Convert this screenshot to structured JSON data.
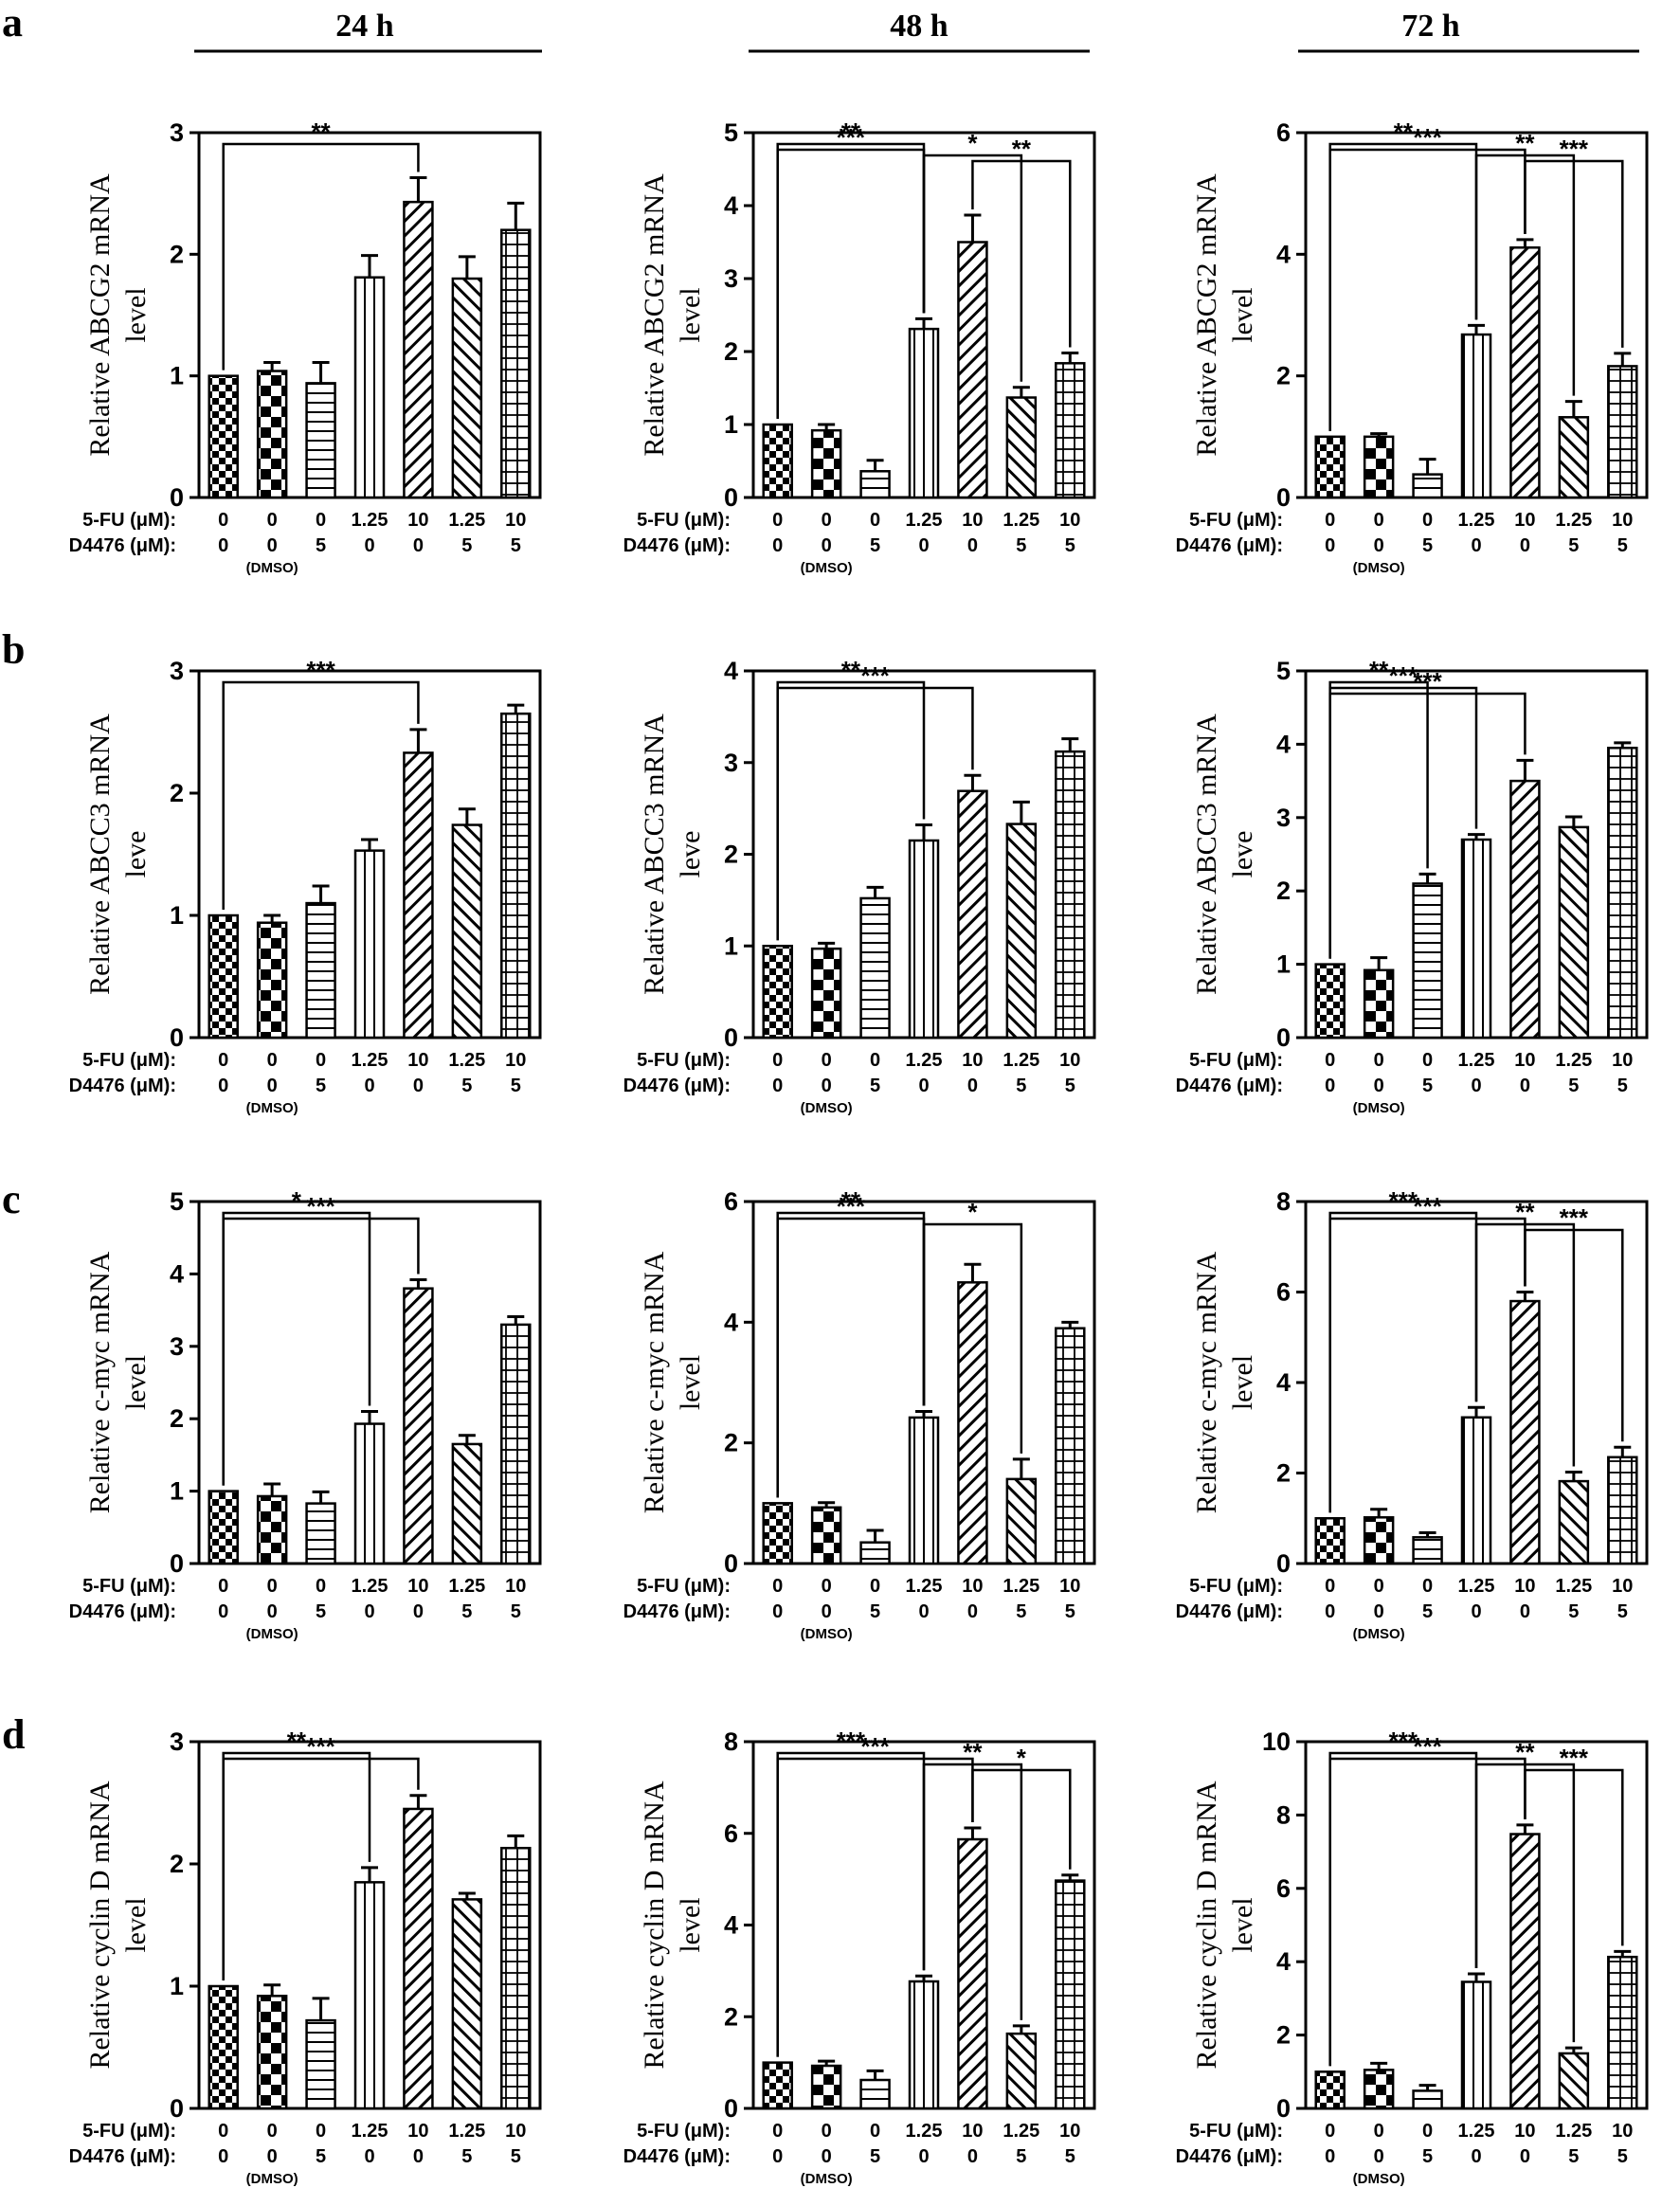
{
  "headers": [
    "24 h",
    "48 h",
    "72 h"
  ],
  "row_axis_labels": {
    "fu": "5-FU (μM):",
    "d": "D4476 (μM):",
    "dmso": "(DMSO)"
  },
  "conditions": {
    "fu": [
      "0",
      "0",
      "0",
      "1.25",
      "10",
      "1.25",
      "10"
    ],
    "d": [
      "0",
      "0",
      "5",
      "0",
      "0",
      "5",
      "5"
    ]
  },
  "patterns": [
    "checker-small",
    "checker-large",
    "horizontal-lines",
    "vertical-lines",
    "diagonal-right",
    "diagonal-left",
    "grid"
  ],
  "chart_data": [
    {
      "type": "bar",
      "panel": "a",
      "timepoint": "24 h",
      "ylabel": [
        "Relative ABCG2 mRNA",
        "level"
      ],
      "ylim": [
        0,
        3
      ],
      "yticks": [
        "0",
        "1",
        "2",
        "3"
      ],
      "values": [
        1.0,
        1.04,
        0.94,
        1.81,
        2.43,
        1.8,
        2.2
      ],
      "errors": [
        0.0,
        0.07,
        0.17,
        0.18,
        0.2,
        0.18,
        0.22
      ],
      "sig": [
        {
          "from": 0,
          "to": 4,
          "label": "**"
        }
      ]
    },
    {
      "type": "bar",
      "panel": "a",
      "timepoint": "48 h",
      "ylabel": [
        "Relative ABCG2 mRNA",
        "level"
      ],
      "ylim": [
        0,
        5
      ],
      "yticks": [
        "0",
        "1",
        "2",
        "3",
        "4",
        "5"
      ],
      "values": [
        1.0,
        0.92,
        0.36,
        2.31,
        3.5,
        1.37,
        1.84
      ],
      "errors": [
        0.0,
        0.08,
        0.15,
        0.14,
        0.37,
        0.14,
        0.14
      ],
      "sig": [
        {
          "from": 0,
          "to": 3,
          "label": "**"
        },
        {
          "from": 0,
          "to": 3,
          "label": "***"
        },
        {
          "from": 3,
          "to": 5,
          "label": "*"
        },
        {
          "from": 4,
          "to": 6,
          "label": "**"
        }
      ]
    },
    {
      "type": "bar",
      "panel": "a",
      "timepoint": "72 h",
      "ylabel": [
        "Relative ABCG2 mRNA",
        "level"
      ],
      "ylim": [
        0,
        6
      ],
      "yticks": [
        "0",
        "2",
        "4",
        "6"
      ],
      "values": [
        1.0,
        1.0,
        0.38,
        2.68,
        4.11,
        1.32,
        2.16
      ],
      "errors": [
        0.0,
        0.05,
        0.25,
        0.15,
        0.13,
        0.26,
        0.21
      ],
      "sig": [
        {
          "from": 0,
          "to": 3,
          "label": "**"
        },
        {
          "from": 0,
          "to": 4,
          "label": "***"
        },
        {
          "from": 3,
          "to": 5,
          "label": "**"
        },
        {
          "from": 4,
          "to": 6,
          "label": "***"
        }
      ]
    },
    {
      "type": "bar",
      "panel": "b",
      "timepoint": "24 h",
      "ylabel": [
        "Relative ABCC3 mRNA",
        "leve"
      ],
      "ylim": [
        0,
        3
      ],
      "yticks": [
        "0",
        "1",
        "2",
        "3"
      ],
      "values": [
        1.0,
        0.94,
        1.1,
        1.53,
        2.33,
        1.74,
        2.65
      ],
      "errors": [
        0.0,
        0.06,
        0.14,
        0.09,
        0.19,
        0.13,
        0.07
      ],
      "sig": [
        {
          "from": 0,
          "to": 4,
          "label": "***"
        }
      ]
    },
    {
      "type": "bar",
      "panel": "b",
      "timepoint": "48 h",
      "ylabel": [
        "Relative ABCC3 mRNA",
        "leve"
      ],
      "ylim": [
        0,
        4
      ],
      "yticks": [
        "0",
        "1",
        "2",
        "3",
        "4"
      ],
      "values": [
        1.0,
        0.97,
        1.52,
        2.15,
        2.69,
        2.33,
        3.12
      ],
      "errors": [
        0.0,
        0.06,
        0.12,
        0.17,
        0.17,
        0.24,
        0.14
      ],
      "sig": [
        {
          "from": 0,
          "to": 3,
          "label": "**"
        },
        {
          "from": 0,
          "to": 4,
          "label": "***"
        }
      ]
    },
    {
      "type": "bar",
      "panel": "b",
      "timepoint": "72 h",
      "ylabel": [
        "Relative ABCC3 mRNA",
        "leve"
      ],
      "ylim": [
        0,
        5
      ],
      "yticks": [
        "0",
        "1",
        "2",
        "3",
        "4",
        "5"
      ],
      "values": [
        1.0,
        0.92,
        2.1,
        2.7,
        3.5,
        2.87,
        3.95
      ],
      "errors": [
        0.0,
        0.17,
        0.13,
        0.07,
        0.28,
        0.14,
        0.07
      ],
      "sig": [
        {
          "from": 0,
          "to": 2,
          "label": "**"
        },
        {
          "from": 0,
          "to": 3,
          "label": "***"
        },
        {
          "from": 0,
          "to": 4,
          "label": "***"
        }
      ]
    },
    {
      "type": "bar",
      "panel": "c",
      "timepoint": "24 h",
      "ylabel": [
        "Relative c-myc mRNA",
        "level"
      ],
      "ylim": [
        0,
        5
      ],
      "yticks": [
        "0",
        "1",
        "2",
        "3",
        "4",
        "5"
      ],
      "values": [
        1.0,
        0.93,
        0.83,
        1.93,
        3.8,
        1.65,
        3.3
      ],
      "errors": [
        0.0,
        0.17,
        0.16,
        0.17,
        0.12,
        0.12,
        0.11
      ],
      "sig": [
        {
          "from": 0,
          "to": 3,
          "label": "*"
        },
        {
          "from": 0,
          "to": 4,
          "label": "***"
        }
      ]
    },
    {
      "type": "bar",
      "panel": "c",
      "timepoint": "48 h",
      "ylabel": [
        "Relative c-myc mRNA",
        "level"
      ],
      "ylim": [
        0,
        6
      ],
      "yticks": [
        "0",
        "2",
        "4",
        "6"
      ],
      "values": [
        1.0,
        0.93,
        0.35,
        2.42,
        4.66,
        1.4,
        3.9
      ],
      "errors": [
        0.0,
        0.08,
        0.2,
        0.1,
        0.3,
        0.33,
        0.1
      ],
      "sig": [
        {
          "from": 0,
          "to": 3,
          "label": "**"
        },
        {
          "from": 0,
          "to": 3,
          "label": "***"
        },
        {
          "from": 3,
          "to": 5,
          "label": "*"
        }
      ]
    },
    {
      "type": "bar",
      "panel": "c",
      "timepoint": "72 h",
      "ylabel": [
        "Relative c-myc mRNA",
        "level"
      ],
      "ylim": [
        0,
        8
      ],
      "yticks": [
        "0",
        "2",
        "4",
        "6",
        "8"
      ],
      "values": [
        1.0,
        1.02,
        0.58,
        3.23,
        5.8,
        1.82,
        2.35
      ],
      "errors": [
        0.0,
        0.18,
        0.1,
        0.22,
        0.2,
        0.2,
        0.22
      ],
      "sig": [
        {
          "from": 0,
          "to": 3,
          "label": "***"
        },
        {
          "from": 0,
          "to": 4,
          "label": "***"
        },
        {
          "from": 3,
          "to": 5,
          "label": "**"
        },
        {
          "from": 4,
          "to": 6,
          "label": "***"
        }
      ]
    },
    {
      "type": "bar",
      "panel": "d",
      "timepoint": "24 h",
      "ylabel": [
        "Relative cyclin D mRNA",
        "level"
      ],
      "ylim": [
        0,
        3
      ],
      "yticks": [
        "0",
        "1",
        "2",
        "3"
      ],
      "values": [
        1.0,
        0.92,
        0.72,
        1.85,
        2.45,
        1.71,
        2.13
      ],
      "errors": [
        0.0,
        0.09,
        0.18,
        0.12,
        0.11,
        0.05,
        0.1
      ],
      "sig": [
        {
          "from": 0,
          "to": 3,
          "label": "**"
        },
        {
          "from": 0,
          "to": 4,
          "label": "***"
        }
      ]
    },
    {
      "type": "bar",
      "panel": "d",
      "timepoint": "48 h",
      "ylabel": [
        "Relative cyclin D mRNA",
        "level"
      ],
      "ylim": [
        0,
        8
      ],
      "yticks": [
        "0",
        "2",
        "4",
        "6",
        "8"
      ],
      "values": [
        1.0,
        0.93,
        0.62,
        2.77,
        5.87,
        1.63,
        4.97
      ],
      "errors": [
        0.0,
        0.1,
        0.2,
        0.12,
        0.25,
        0.17,
        0.12
      ],
      "sig": [
        {
          "from": 0,
          "to": 3,
          "label": "***"
        },
        {
          "from": 0,
          "to": 4,
          "label": "***"
        },
        {
          "from": 3,
          "to": 5,
          "label": "**"
        },
        {
          "from": 4,
          "to": 6,
          "label": "*"
        }
      ]
    },
    {
      "type": "bar",
      "panel": "d",
      "timepoint": "72 h",
      "ylabel": [
        "Relative cyclin D mRNA",
        "level"
      ],
      "ylim": [
        0,
        10
      ],
      "yticks": [
        "0",
        "2",
        "4",
        "6",
        "8",
        "10"
      ],
      "values": [
        1.0,
        1.05,
        0.48,
        3.45,
        7.48,
        1.5,
        4.13
      ],
      "errors": [
        0.0,
        0.18,
        0.15,
        0.22,
        0.25,
        0.15,
        0.15
      ],
      "sig": [
        {
          "from": 0,
          "to": 3,
          "label": "***"
        },
        {
          "from": 0,
          "to": 4,
          "label": "***"
        },
        {
          "from": 3,
          "to": 5,
          "label": "**"
        },
        {
          "from": 4,
          "to": 6,
          "label": "***"
        }
      ]
    }
  ]
}
